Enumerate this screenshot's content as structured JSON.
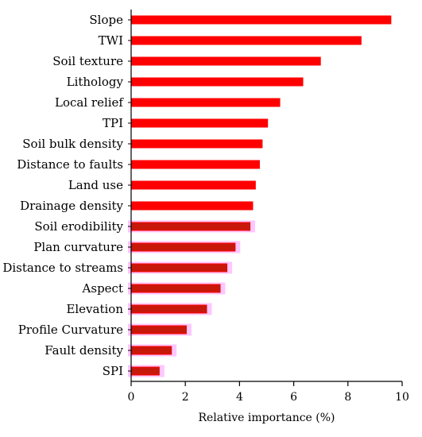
{
  "chart_data": {
    "type": "bar",
    "orientation": "horizontal",
    "categories": [
      "Slope",
      "TWI",
      "Soil texture",
      "Lithology",
      "Local relief",
      "TPI",
      "Soil bulk density",
      "Distance to faults",
      "Land use",
      "Drainage density",
      "Soil erodibility",
      "Plan curvature",
      "Distance to streams",
      "Aspect",
      "Elevation",
      "Profile Curvature",
      "Fault density",
      "SPI"
    ],
    "values": [
      9.6,
      8.5,
      7.0,
      6.35,
      5.5,
      5.05,
      4.85,
      4.75,
      4.6,
      4.5,
      4.4,
      3.85,
      3.55,
      3.3,
      2.8,
      2.05,
      1.5,
      1.05
    ],
    "xlabel": "Relative importance (%)",
    "ylabel": "",
    "xlim": [
      0,
      10
    ],
    "xticks": [
      0,
      2,
      4,
      6,
      8,
      10
    ],
    "grid": false,
    "legend": "none",
    "colors": {
      "bar": "#ff0000",
      "bar_dark": "#b5200e",
      "halo": "#ffc6ff"
    }
  }
}
